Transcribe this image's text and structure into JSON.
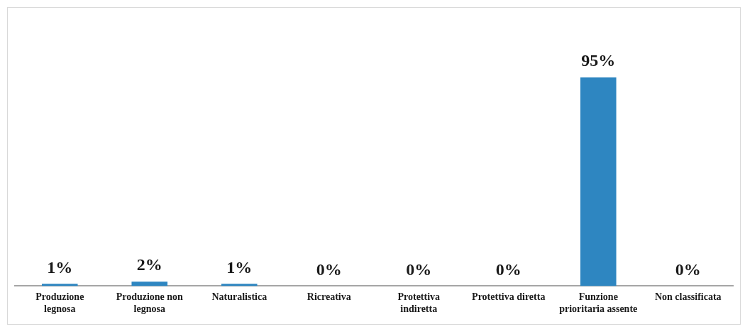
{
  "chart_data": {
    "type": "bar",
    "categories": [
      "Produzione legnosa",
      "Produzione non legnosa",
      "Naturalistica",
      "Ricreativa",
      "Protettiva indiretta",
      "Protettiva diretta",
      "Funzione prioritaria assente",
      "Non classificata"
    ],
    "values": [
      1,
      2,
      1,
      0,
      0,
      0,
      95,
      0
    ],
    "value_labels": [
      "1%",
      "2%",
      "1%",
      "0%",
      "0%",
      "0%",
      "95%",
      "0%"
    ],
    "color": "#2e86c1",
    "grid": false,
    "legend": false
  }
}
